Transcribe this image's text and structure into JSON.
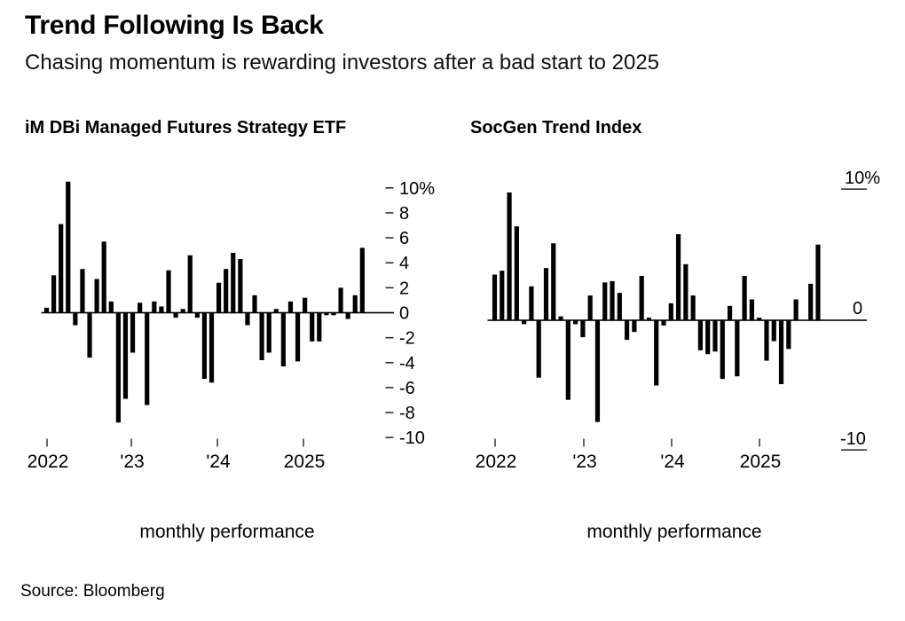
{
  "page": {
    "title": "Trend Following Is Back",
    "subtitle": "Chasing momentum is rewarding investors after a bad start to 2025",
    "source": "Source: Bloomberg"
  },
  "charts": [
    {
      "title": "iM DBi Managed Futures Strategy ETF",
      "caption": "monthly performance",
      "y_axis": {
        "tick_values": [
          10,
          8,
          6,
          4,
          2,
          0,
          -2,
          -4,
          -6,
          -8,
          -10
        ],
        "tick_labels": [
          "10%",
          "8",
          "6",
          "4",
          "2",
          "0",
          "-2",
          "-4",
          "-6",
          "-8",
          "-10"
        ]
      },
      "x_axis": {
        "tick_labels": [
          "2022",
          "'23",
          "'24",
          "2025"
        ]
      }
    },
    {
      "title": "SocGen Trend Index",
      "caption": "monthly performance",
      "y_axis": {
        "tick_values": [
          10,
          0,
          -10
        ],
        "tick_labels": [
          "10%",
          "0",
          "-10"
        ]
      },
      "x_axis": {
        "tick_labels": [
          "2022",
          "'23",
          "'24",
          "2025"
        ]
      }
    }
  ],
  "chart_data": {
    "type": "bar",
    "title": "Trend Following Is Back",
    "subtitle": "Chasing momentum is rewarding investors after a bad start to 2025",
    "ylabel": "monthly performance (%)",
    "ylim": [
      -10,
      10
    ],
    "grid": false,
    "legend_position": "none",
    "bar_color": "#000000",
    "categories": [
      "2022-01",
      "2022-02",
      "2022-03",
      "2022-04",
      "2022-05",
      "2022-06",
      "2022-07",
      "2022-08",
      "2022-09",
      "2022-10",
      "2022-11",
      "2022-12",
      "2023-01",
      "2023-02",
      "2023-03",
      "2023-04",
      "2023-05",
      "2023-06",
      "2023-07",
      "2023-08",
      "2023-09",
      "2023-10",
      "2023-11",
      "2023-12",
      "2024-01",
      "2024-02",
      "2024-03",
      "2024-04",
      "2024-05",
      "2024-06",
      "2024-07",
      "2024-08",
      "2024-09",
      "2024-10",
      "2024-11",
      "2024-12",
      "2025-01",
      "2025-02",
      "2025-03",
      "2025-04",
      "2025-05",
      "2025-06",
      "2025-07",
      "2025-08",
      "2025-09"
    ],
    "series": [
      {
        "name": "iM DBi Managed Futures Strategy ETF",
        "values": [
          0.4,
          3.0,
          7.1,
          10.5,
          -1.0,
          3.5,
          -3.6,
          2.7,
          5.7,
          0.9,
          -8.8,
          -6.9,
          -3.2,
          0.8,
          -7.4,
          0.9,
          0.5,
          3.4,
          -0.4,
          0.3,
          4.6,
          -0.4,
          -5.3,
          -5.6,
          2.4,
          3.5,
          4.8,
          4.3,
          -1.0,
          1.4,
          -3.8,
          -3.2,
          0.3,
          -4.3,
          0.9,
          -3.9,
          1.2,
          -2.3,
          -2.3,
          -0.2,
          -0.2,
          2.0,
          -0.5,
          1.4,
          5.2
        ]
      },
      {
        "name": "SocGen Trend Index",
        "values": [
          3.5,
          3.8,
          9.8,
          7.2,
          -0.3,
          2.6,
          -4.4,
          4.0,
          5.9,
          0.3,
          -6.1,
          -0.3,
          -1.3,
          1.9,
          -7.8,
          2.9,
          3.0,
          2.1,
          -1.5,
          -0.9,
          3.4,
          0.2,
          -5.0,
          -0.4,
          1.3,
          6.6,
          4.3,
          1.9,
          -2.3,
          -2.6,
          -2.4,
          -4.5,
          1.1,
          -4.3,
          3.4,
          1.6,
          0.2,
          -3.1,
          -1.6,
          -4.9,
          -2.2,
          1.6,
          0.0,
          2.8,
          5.8
        ]
      }
    ]
  }
}
